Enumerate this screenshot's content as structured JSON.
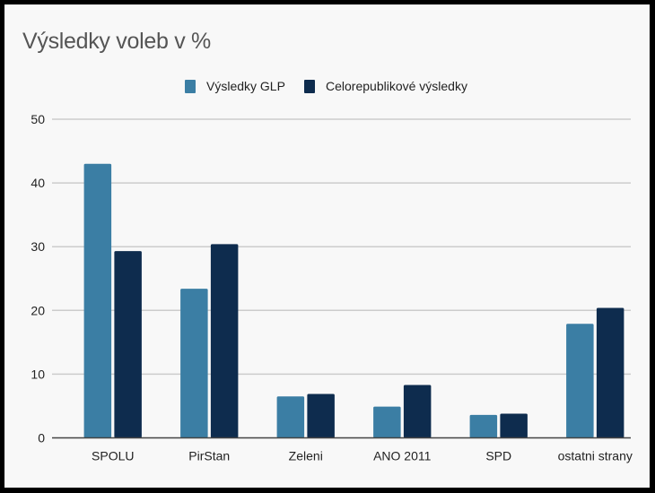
{
  "chart_data": {
    "type": "bar",
    "title": "Výsledky voleb v %",
    "xlabel": "",
    "ylabel": "",
    "ylim": [
      0,
      50
    ],
    "yticks": [
      "0",
      "10",
      "20",
      "30",
      "40",
      "50"
    ],
    "ytick_values": [
      0,
      10,
      20,
      30,
      40,
      50
    ],
    "grid": true,
    "legend_position": "top",
    "categories": [
      "SPOLU",
      "PirStan",
      "Zeleni",
      "ANO 2011",
      "SPD",
      "ostatni strany"
    ],
    "series": [
      {
        "name": "Výsledky GLP",
        "color": "#3b7ea4",
        "values": [
          43.0,
          23.4,
          6.5,
          4.9,
          3.6,
          17.9
        ]
      },
      {
        "name": "Celorepublikové výsledky",
        "color": "#0e2c4e",
        "values": [
          29.3,
          30.4,
          6.9,
          8.3,
          3.8,
          20.4
        ]
      }
    ]
  }
}
